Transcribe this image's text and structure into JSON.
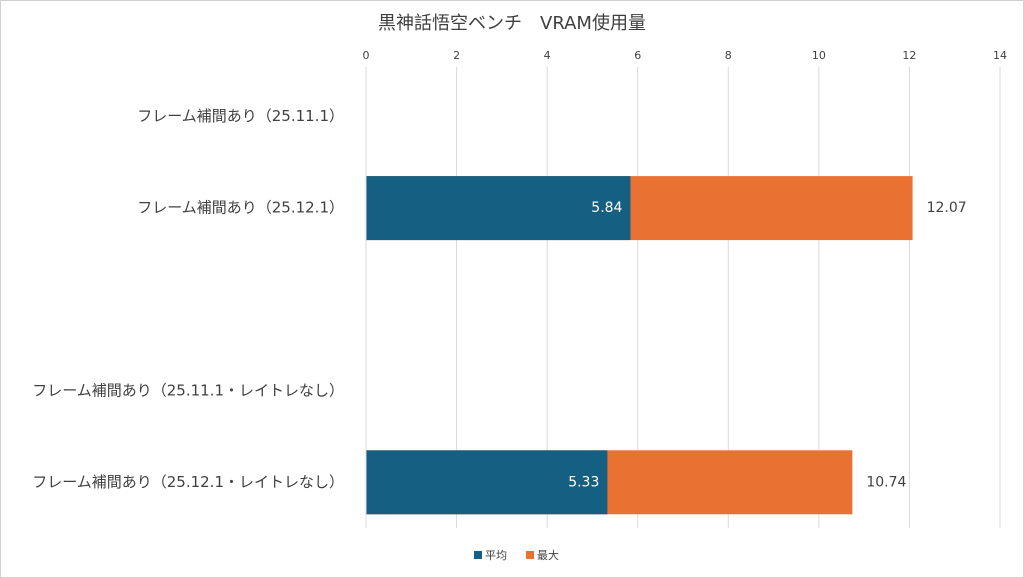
{
  "chart_data": {
    "type": "bar",
    "orientation": "horizontal",
    "title": "黒神話悟空ベンチ　VRAM使用量",
    "categories": [
      "フレーム補間あり（25.11.1）",
      "フレーム補間あり（25.12.1）",
      null,
      "フレーム補間あり（25.11.1・レイトレなし）",
      "フレーム補間あり（25.12.1・レイトレなし）"
    ],
    "series": [
      {
        "name": "平均",
        "color": "#156082",
        "values": [
          null,
          5.84,
          null,
          null,
          5.33
        ]
      },
      {
        "name": "最大",
        "color": "#e97132",
        "values": [
          null,
          12.07,
          null,
          null,
          10.74
        ]
      }
    ],
    "xlim": [
      0,
      14
    ],
    "xticks": [
      0,
      2,
      4,
      6,
      8,
      10,
      12,
      14
    ],
    "grid": true,
    "legend": "bottom"
  }
}
